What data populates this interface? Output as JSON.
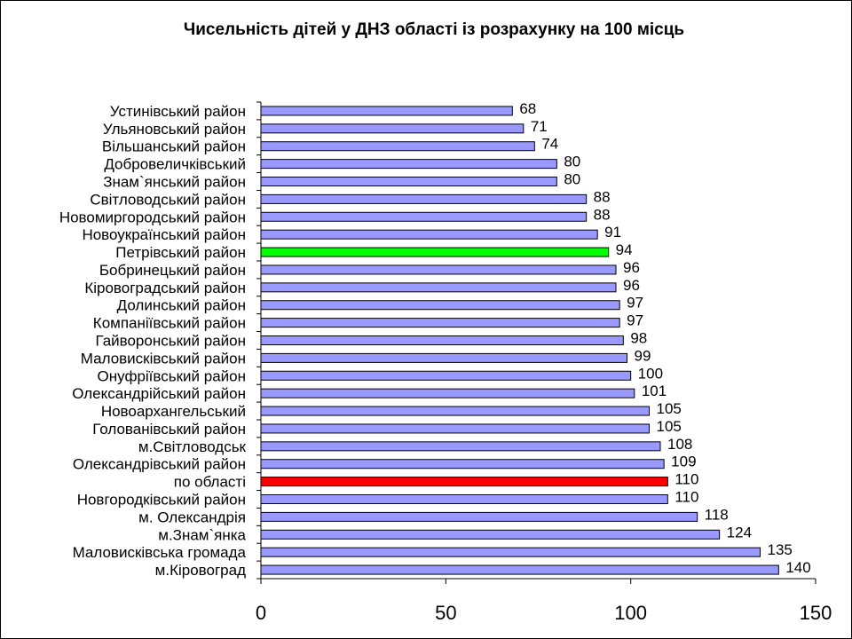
{
  "chart_data": {
    "type": "bar",
    "orientation": "horizontal",
    "title": "Чисельність дітей у ДНЗ області із розрахунку на 100 місць",
    "categories": [
      "Устинівський район",
      "Ульяновський район",
      "Вільшанський район",
      "Добровеличківський",
      "Знам`янський район",
      "Світловодський район",
      "Новомиргородський район",
      "Новоукраїнський район",
      "Петрівський район",
      "Бобринецький район",
      "Кіровоградський район",
      "Долинський район",
      "Компаніївський район",
      "Гайворонський район",
      "Маловисківський район",
      "Онуфріївський  район",
      "Олександрійський район",
      "Новоархангельський",
      "Голованівський район",
      "м.Світловодськ",
      "Олександрівський район",
      "по області",
      "Новгородківський район",
      "м. Олександрія",
      "м.Знам`янка",
      "Маловисківська громада",
      "м.Кіровоград"
    ],
    "values": [
      68,
      71,
      74,
      80,
      80,
      88,
      88,
      91,
      94,
      96,
      96,
      97,
      97,
      98,
      99,
      100,
      101,
      105,
      105,
      108,
      109,
      110,
      110,
      118,
      124,
      135,
      140
    ],
    "xlim": [
      0,
      150
    ],
    "xticks": [
      0,
      50,
      100,
      150
    ],
    "grid": false,
    "colors": {
      "default": "#9999ff",
      "highlight_green": "#00ff00",
      "highlight_red": "#ff0000",
      "outline": "#000000"
    },
    "highlights": {
      "Петрівський район": "#00ff00",
      "по області": "#ff0000"
    }
  }
}
